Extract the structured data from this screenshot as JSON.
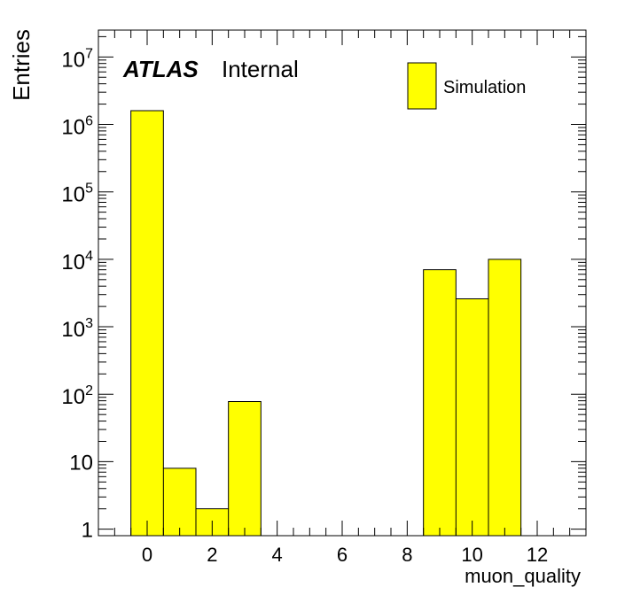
{
  "chart_data": {
    "type": "bar",
    "x_label": "muon_quality",
    "y_label": "Entries",
    "y_scale": "log",
    "xlim": [
      -1.5,
      13.5
    ],
    "ylim": [
      0.8,
      25000000
    ],
    "x_ticks": [
      0,
      2,
      4,
      6,
      8,
      10,
      12
    ],
    "y_ticks": [
      {
        "value": 1,
        "base": "1",
        "exp": ""
      },
      {
        "value": 10,
        "base": "10",
        "exp": ""
      },
      {
        "value": 100,
        "base": "10",
        "exp": "2"
      },
      {
        "value": 1000,
        "base": "10",
        "exp": "3"
      },
      {
        "value": 10000,
        "base": "10",
        "exp": "4"
      },
      {
        "value": 100000,
        "base": "10",
        "exp": "5"
      },
      {
        "value": 1000000,
        "base": "10",
        "exp": "6"
      },
      {
        "value": 10000000,
        "base": "10",
        "exp": "7"
      }
    ],
    "bin_width": 1,
    "bins": [
      {
        "center": 0,
        "value": 1600000
      },
      {
        "center": 1,
        "value": 8
      },
      {
        "center": 2,
        "value": 2
      },
      {
        "center": 3,
        "value": 78
      },
      {
        "center": 9,
        "value": 7000
      },
      {
        "center": 10,
        "value": 2600
      },
      {
        "center": 11,
        "value": 10000
      }
    ],
    "series": [
      {
        "name": "Simulation",
        "color": "#ffff00"
      }
    ],
    "legend_position": "top-right",
    "grid": false,
    "label_bold": "ATLAS",
    "label_plain": "Internal"
  }
}
